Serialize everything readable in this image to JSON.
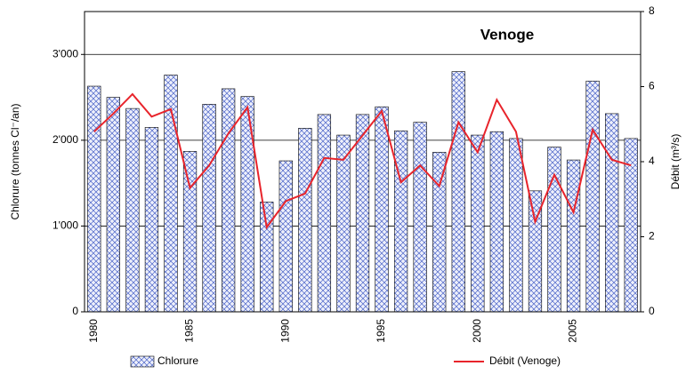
{
  "chart_data": {
    "type": "bar",
    "title": "Venoge",
    "categories": [
      "1980",
      null,
      null,
      null,
      null,
      "1985",
      null,
      null,
      null,
      null,
      "1990",
      null,
      null,
      null,
      null,
      "1995",
      null,
      null,
      null,
      null,
      "2000",
      null,
      null,
      null,
      null,
      "2005",
      null,
      null,
      null
    ],
    "series": [
      {
        "name": "Chlorure",
        "type": "bar",
        "color": "#4a63c8",
        "values": [
          2630,
          2500,
          2370,
          2150,
          2760,
          1870,
          2420,
          2600,
          2510,
          1280,
          1760,
          2140,
          2300,
          2060,
          2300,
          2390,
          2110,
          2210,
          1860,
          2800,
          2060,
          2100,
          2020,
          1410,
          1920,
          1770,
          2690,
          2310,
          2020
        ]
      },
      {
        "name": "Débit (Venoge)",
        "type": "line",
        "axis": "y2",
        "color": "#e8242b",
        "values": [
          4.8,
          5.28,
          5.8,
          5.2,
          5.4,
          3.3,
          3.9,
          4.75,
          5.45,
          2.25,
          2.95,
          3.15,
          4.1,
          4.05,
          4.7,
          5.35,
          3.45,
          3.9,
          3.35,
          5.05,
          4.25,
          5.65,
          4.8,
          2.4,
          3.65,
          2.65,
          4.85,
          4.05,
          3.9
        ]
      }
    ],
    "y_label": "Chlorure (tonnes Cl⁻/an)",
    "y2_label": "Débit (m³/s)",
    "ylim": [
      0,
      3500
    ],
    "yticks": [
      0,
      {
        "value": 1000,
        "label": "1'000"
      },
      {
        "value": 2000,
        "label": "2'000"
      },
      {
        "value": 3000,
        "label": "3'000"
      }
    ],
    "y2lim": [
      0,
      8
    ],
    "y2ticks": [
      0,
      2,
      4,
      6,
      8
    ],
    "grid": true
  }
}
